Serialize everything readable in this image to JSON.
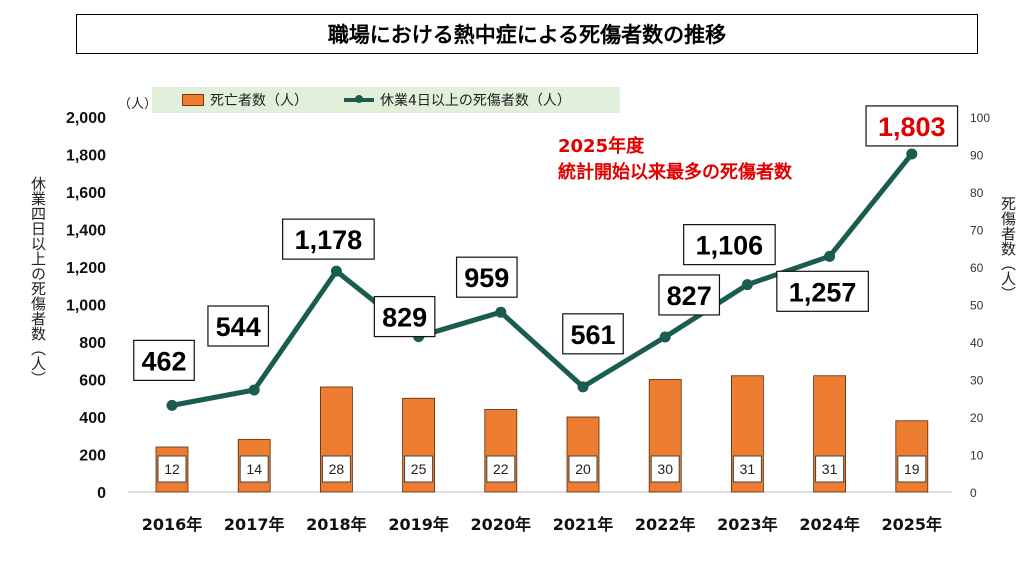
{
  "title": "職場における熱中症による死傷者数の推移",
  "annotation": {
    "line1": "2025年度",
    "line2": "統計開始以来最多の死傷者数"
  },
  "legend": {
    "bar_label": "死亡者数（人）",
    "line_label": "休業4日以上の死傷者数（人）"
  },
  "axes": {
    "left_label": "休業四日以上の死傷者数（人）",
    "left_unit": "（人）",
    "right_label": "死傷者数（人）"
  },
  "colors": {
    "bar": "#ed7d31",
    "line": "#1a5c4d",
    "highlight": "#e00000"
  },
  "chart_data": {
    "type": "bar+line",
    "categories": [
      "2016年",
      "2017年",
      "2018年",
      "2019年",
      "2020年",
      "2021年",
      "2022年",
      "2023年",
      "2024年",
      "2025年"
    ],
    "series": [
      {
        "name": "死亡者数（人）",
        "type": "bar",
        "axis": "right",
        "values": [
          12,
          14,
          28,
          25,
          22,
          20,
          30,
          31,
          31,
          19
        ]
      },
      {
        "name": "休業4日以上の死傷者数（人）",
        "type": "line",
        "axis": "left",
        "values": [
          462,
          544,
          1178,
          829,
          959,
          561,
          827,
          1106,
          1257,
          1803
        ]
      }
    ],
    "y_left": {
      "min": 0,
      "max": 2000,
      "ticks": [
        "0",
        "200",
        "400",
        "600",
        "800",
        "1,000",
        "1,200",
        "1,400",
        "1,600",
        "1,800",
        "2,000"
      ]
    },
    "y_right": {
      "min": 0,
      "max": 100,
      "ticks": [
        "0",
        "10",
        "20",
        "30",
        "40",
        "50",
        "60",
        "70",
        "80",
        "90",
        "100"
      ]
    },
    "line_labels": [
      "462",
      "544",
      "1,178",
      "829",
      "959",
      "561",
      "827",
      "1,106",
      "1,257",
      "1,803"
    ],
    "bar_labels": [
      "12",
      "14",
      "28",
      "25",
      "22",
      "20",
      "30",
      "31",
      "31",
      "19"
    ],
    "highlight_index": 9,
    "grid": false,
    "legend_position": "top"
  }
}
